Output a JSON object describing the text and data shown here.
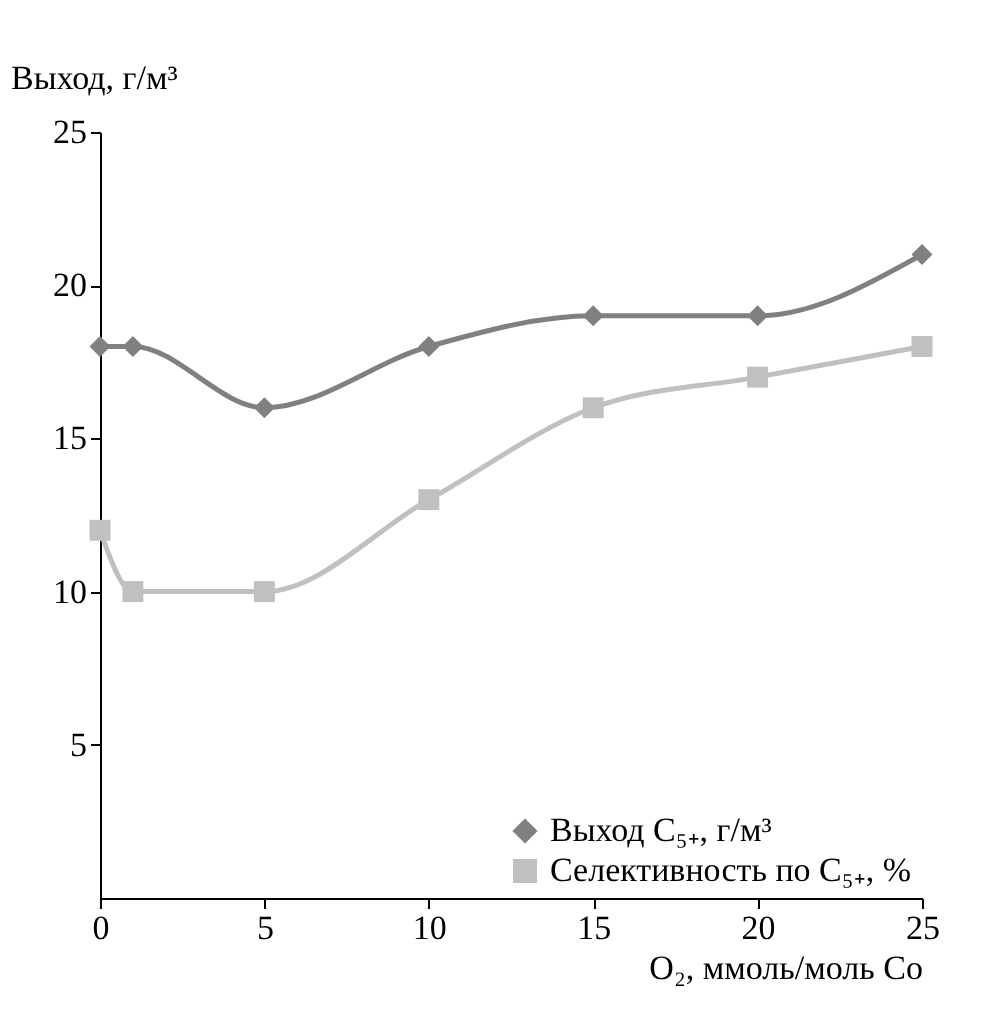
{
  "chart_data": {
    "type": "line",
    "xlabel": "O₂, ммоль/моль Co",
    "ylabel": "Выход, г/м³",
    "x": [
      0,
      1,
      5,
      10,
      15,
      20,
      25
    ],
    "series": [
      {
        "name": "Выход C₅₊, г/м³",
        "color": "#808080",
        "values": [
          18,
          18,
          16,
          18,
          19,
          19,
          21
        ],
        "marker": "diamond"
      },
      {
        "name": "Селективность по C₅₊, %",
        "color": "#c0c0c0",
        "values": [
          12,
          10,
          10,
          13,
          16,
          17,
          18
        ],
        "marker": "square"
      }
    ],
    "xlim": [
      0,
      25
    ],
    "xticks": [
      0,
      5,
      10,
      15,
      20,
      25
    ],
    "ylim": [
      0,
      25
    ],
    "yticks": [
      5,
      10,
      15,
      20,
      25
    ],
    "grid": false,
    "legend": "bottom right"
  }
}
